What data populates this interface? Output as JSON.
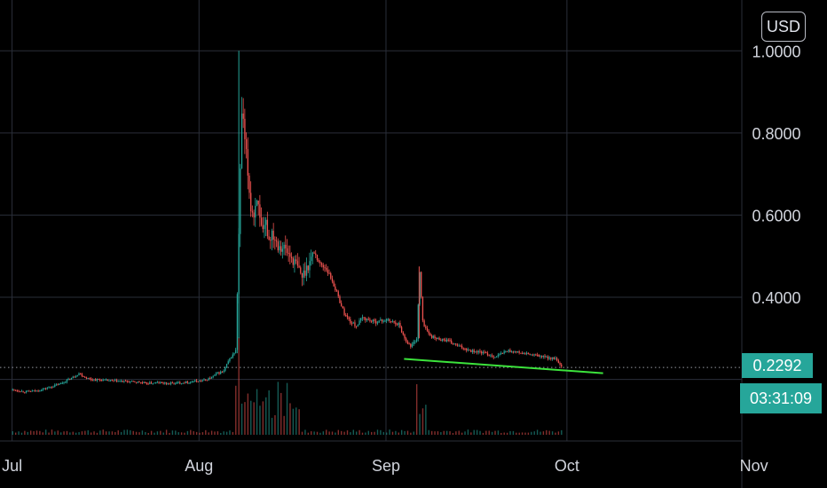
{
  "currency": "USD",
  "colors": {
    "background": "#000000",
    "grid": "#2a2e39",
    "up": "#26a69a",
    "down": "#ef5350",
    "trendline": "#3ce33c",
    "axis_text": "#d1d4dc",
    "badge": "#26a69a",
    "price_line": "#9598a1"
  },
  "last_price": "0.2292",
  "countdown": "03:31:09",
  "chart_data": {
    "type": "candlestick",
    "title": "",
    "xlabel": "",
    "ylabel": "",
    "currency": "USD",
    "x_ticks": [
      "Jul",
      "Aug",
      "Sep",
      "Oct",
      "Nov"
    ],
    "y_ticks": [
      "1.0000",
      "0.8000",
      "0.6000",
      "0.4000"
    ],
    "ylim": [
      0.13,
      1.02
    ],
    "xlim_days": [
      -2,
      121
    ],
    "grid": true,
    "last_price": 0.2292,
    "series": [
      {
        "type": "close-path",
        "points": [
          [
            0,
            0.175
          ],
          [
            2,
            0.17
          ],
          [
            4,
            0.172
          ],
          [
            6,
            0.18
          ],
          [
            8,
            0.19
          ],
          [
            10,
            0.205
          ],
          [
            11,
            0.215
          ],
          [
            12,
            0.205
          ],
          [
            13,
            0.2
          ],
          [
            15,
            0.198
          ],
          [
            17,
            0.196
          ],
          [
            19,
            0.195
          ],
          [
            21,
            0.193
          ],
          [
            22,
            0.19
          ],
          [
            24,
            0.192
          ],
          [
            26,
            0.19
          ],
          [
            28,
            0.192
          ],
          [
            30,
            0.195
          ],
          [
            32,
            0.198
          ],
          [
            33,
            0.205
          ],
          [
            34,
            0.215
          ],
          [
            35,
            0.22
          ],
          [
            36,
            0.25
          ],
          [
            37,
            0.27
          ],
          [
            37.5,
            0.55
          ],
          [
            38,
            0.85
          ],
          [
            38.5,
            0.78
          ],
          [
            39,
            0.7
          ],
          [
            39.5,
            0.62
          ],
          [
            40,
            0.6
          ],
          [
            40.5,
            0.65
          ],
          [
            41,
            0.58
          ],
          [
            41.5,
            0.55
          ],
          [
            42,
            0.58
          ],
          [
            42.5,
            0.54
          ],
          [
            43,
            0.56
          ],
          [
            44,
            0.53
          ],
          [
            45,
            0.52
          ],
          [
            46,
            0.5
          ],
          [
            47,
            0.48
          ],
          [
            48,
            0.45
          ],
          [
            49,
            0.48
          ],
          [
            50,
            0.51
          ],
          [
            51,
            0.48
          ],
          [
            52,
            0.47
          ],
          [
            53,
            0.44
          ],
          [
            54,
            0.4
          ],
          [
            55,
            0.36
          ],
          [
            56,
            0.34
          ],
          [
            57,
            0.33
          ],
          [
            58,
            0.35
          ],
          [
            60,
            0.34
          ],
          [
            62,
            0.345
          ],
          [
            64,
            0.335
          ],
          [
            65,
            0.3
          ],
          [
            66,
            0.28
          ],
          [
            67,
            0.3
          ],
          [
            67.5,
            0.46
          ],
          [
            68,
            0.34
          ],
          [
            69,
            0.31
          ],
          [
            70,
            0.3
          ],
          [
            72,
            0.295
          ],
          [
            74,
            0.28
          ],
          [
            76,
            0.27
          ],
          [
            78,
            0.265
          ],
          [
            80,
            0.255
          ],
          [
            82,
            0.27
          ],
          [
            84,
            0.265
          ],
          [
            86,
            0.26
          ],
          [
            88,
            0.255
          ],
          [
            90,
            0.25
          ],
          [
            91,
            0.2292
          ]
        ]
      },
      {
        "type": "trendline",
        "points": [
          [
            65,
            0.25
          ],
          [
            98,
            0.215
          ]
        ]
      }
    ],
    "volume": {
      "bars_day": [
        37.5,
        38,
        39,
        40,
        42,
        44,
        46,
        67.5,
        68
      ],
      "peak_day": 37.5
    }
  }
}
